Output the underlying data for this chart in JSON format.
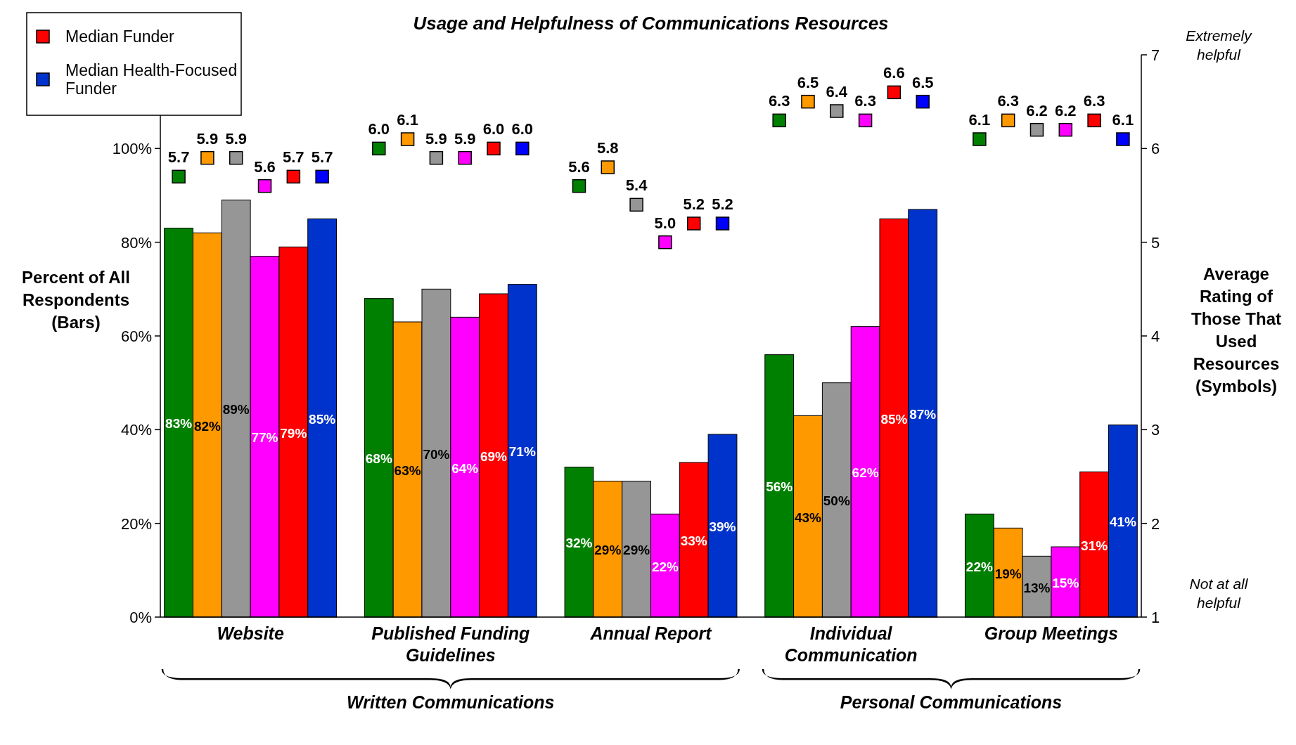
{
  "chart_data": {
    "type": "bar",
    "title": "Usage and Helpfulness of Communications Resources",
    "ylabel": "Percent of All Respondents (Bars)",
    "y2label": "Average Rating of Those That Used Resources (Symbols)",
    "categories": [
      "Website",
      "Published Funding Guidelines",
      "Annual Report",
      "Individual Communication",
      "Group Meetings"
    ],
    "series": [
      {
        "color": "#008000",
        "values": [
          83,
          68,
          32,
          56,
          22
        ],
        "value_labels": [
          "83%",
          "68%",
          "32%",
          "56%",
          "22%"
        ]
      },
      {
        "color": "#ff9900",
        "values": [
          82,
          63,
          29,
          43,
          19
        ],
        "value_labels": [
          "82%",
          "63%",
          "29%",
          "43%",
          "19%"
        ]
      },
      {
        "color": "#969696",
        "values": [
          89,
          70,
          29,
          50,
          13
        ],
        "value_labels": [
          "89%",
          "70%",
          "29%",
          "50%",
          "13%"
        ]
      },
      {
        "color": "#ff00ff",
        "values": [
          77,
          64,
          22,
          62,
          15
        ],
        "value_labels": [
          "77%",
          "64%",
          "22%",
          "62%",
          "15%"
        ]
      },
      {
        "name": "Median Funder",
        "color": "#ff0000",
        "values": [
          79,
          69,
          33,
          85,
          31
        ],
        "value_labels": [
          "79%",
          "69%",
          "33%",
          "85%",
          "31%"
        ]
      },
      {
        "name": "Median Health-Focused Funder",
        "color": "#0033cc",
        "values": [
          85,
          71,
          39,
          87,
          41
        ],
        "value_labels": [
          "85%",
          "71%",
          "39%",
          "87%",
          "41%"
        ]
      },
      {
        "type": "scatter",
        "axis": "y2",
        "color": "#008000",
        "x": [
          "Website",
          "Published Funding Guidelines",
          "Annual Report",
          "Individual Communication",
          "Group Meetings"
        ],
        "values": [
          5.7,
          6.0,
          5.6,
          6.3,
          6.1
        ],
        "value_labels": [
          "5.7",
          "6.0",
          "5.6",
          "6.3",
          "6.1"
        ]
      },
      {
        "type": "scatter",
        "axis": "y2",
        "color": "#ff9900",
        "x": [
          "Website",
          "Published Funding Guidelines",
          "Annual Report",
          "Individual Communication",
          "Group Meetings"
        ],
        "values": [
          5.9,
          6.1,
          5.8,
          6.5,
          6.3
        ],
        "value_labels": [
          "5.9",
          "6.1",
          "5.8",
          "6.5",
          "6.3"
        ]
      },
      {
        "type": "scatter",
        "axis": "y2",
        "color": "#969696",
        "x": [
          "Website",
          "Published Funding Guidelines",
          "Annual Report",
          "Individual Communication",
          "Group Meetings"
        ],
        "values": [
          5.9,
          5.9,
          5.4,
          6.4,
          6.2
        ],
        "value_labels": [
          "5.9",
          "5.9",
          "5.4",
          "6.4",
          "6.2"
        ]
      },
      {
        "type": "scatter",
        "axis": "y2",
        "color": "#ff00ff",
        "x": [
          "Website",
          "Published Funding Guidelines",
          "Annual Report",
          "Individual Communication",
          "Group Meetings"
        ],
        "values": [
          5.6,
          5.9,
          5.0,
          6.3,
          6.2
        ],
        "value_labels": [
          "5.6",
          "5.9",
          "5.0",
          "6.3",
          "6.2"
        ]
      },
      {
        "type": "scatter",
        "axis": "y2",
        "color": "#ff0000",
        "x": [
          "Website",
          "Published Funding Guidelines",
          "Annual Report",
          "Individual Communication",
          "Group Meetings"
        ],
        "values": [
          5.7,
          6.0,
          5.2,
          6.6,
          6.3
        ],
        "value_labels": [
          "5.7",
          "6.0",
          "5.2",
          "6.6",
          "6.3"
        ]
      },
      {
        "type": "scatter",
        "axis": "y2",
        "color": "#0000ff",
        "x": [
          "Website",
          "Published Funding Guidelines",
          "Annual Report",
          "Individual Communication",
          "Group Meetings"
        ],
        "values": [
          5.7,
          6.0,
          5.2,
          6.5,
          6.1
        ],
        "value_labels": [
          "5.7",
          "6.0",
          "5.2",
          "6.5",
          "6.1"
        ]
      }
    ],
    "ylim": [
      0,
      120
    ],
    "yticks": [
      {
        "value": 0,
        "label": "0%"
      },
      {
        "value": 20,
        "label": "20%"
      },
      {
        "value": 40,
        "label": "40%"
      },
      {
        "value": 60,
        "label": "60%"
      },
      {
        "value": 80,
        "label": "80%"
      },
      {
        "value": 100,
        "label": "100%"
      }
    ],
    "y2lim": [
      1,
      7
    ],
    "y2ticks": [
      1,
      2,
      3,
      4,
      5,
      6,
      7
    ],
    "marker": "square",
    "legend": "top left",
    "grid": false,
    "annotations": [
      "Written Communications",
      "Personal Communications",
      "Extremely helpful",
      "Not at all helpful"
    ]
  }
}
